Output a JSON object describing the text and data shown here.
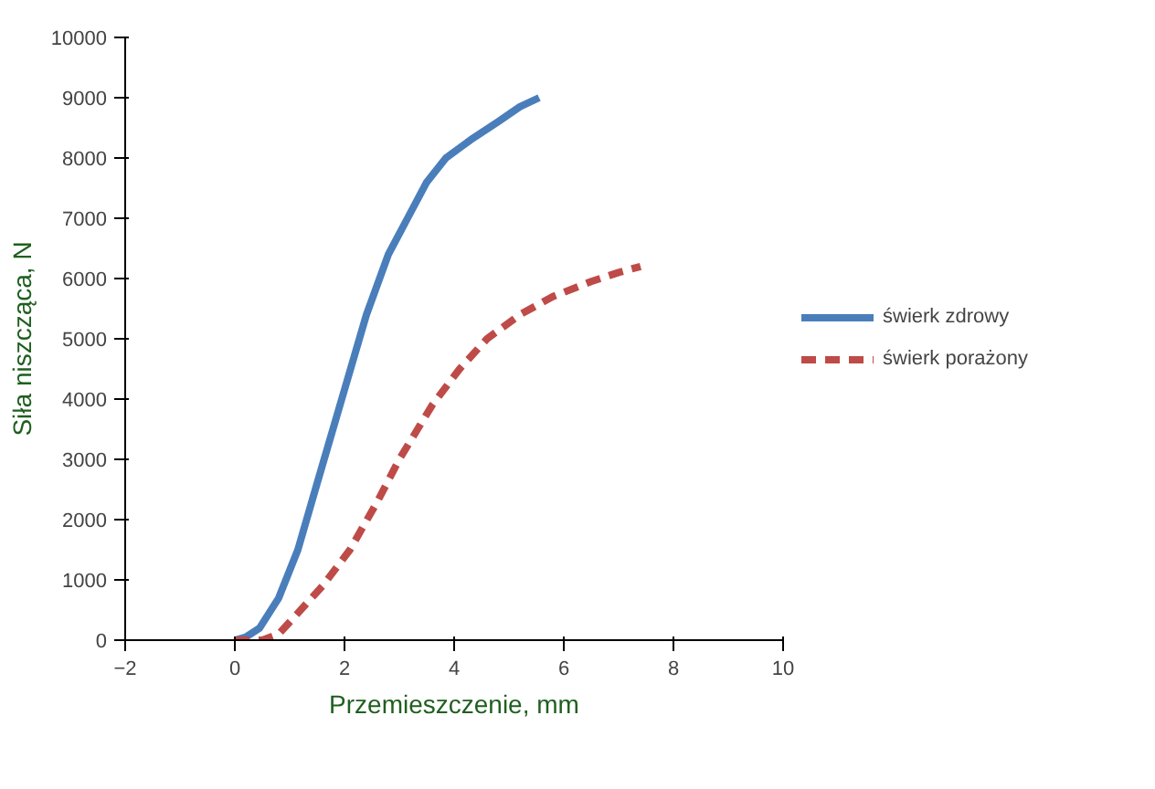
{
  "chart_data": {
    "type": "line",
    "xlabel": "Przemieszczenie, mm",
    "ylabel": "Siła niszcząca, N",
    "xlim": [
      -2,
      10
    ],
    "ylim": [
      0,
      10000
    ],
    "xticks": [
      -2,
      0,
      2,
      4,
      6,
      8,
      10
    ],
    "yticks": [
      0,
      1000,
      2000,
      3000,
      4000,
      5000,
      6000,
      7000,
      8000,
      9000,
      10000
    ],
    "grid": false,
    "legend": "right",
    "marker": "none",
    "series": [
      {
        "name": "świerk zdrowy",
        "color": "#4a7ebb",
        "line_style": "solid",
        "x": [
          0,
          0.2,
          0.45,
          0.8,
          1.15,
          1.5,
          1.95,
          2.4,
          2.8,
          3.15,
          3.5,
          3.85,
          4.3,
          4.8,
          5.2,
          5.55
        ],
        "values": [
          0,
          50,
          200,
          700,
          1500,
          2600,
          4000,
          5400,
          6400,
          7000,
          7600,
          8000,
          8300,
          8600,
          8850,
          9000
        ]
      },
      {
        "name": "świerk porażony",
        "color": "#be4b48",
        "line_style": "dashed",
        "x": [
          0,
          0.5,
          0.8,
          1.2,
          1.6,
          2.1,
          2.6,
          3.0,
          3.6,
          4.1,
          4.6,
          5.2,
          5.8,
          6.5,
          7.0,
          7.4
        ],
        "values": [
          0,
          0,
          100,
          500,
          900,
          1500,
          2300,
          3000,
          3900,
          4500,
          5000,
          5400,
          5700,
          5950,
          6100,
          6200
        ]
      }
    ]
  }
}
